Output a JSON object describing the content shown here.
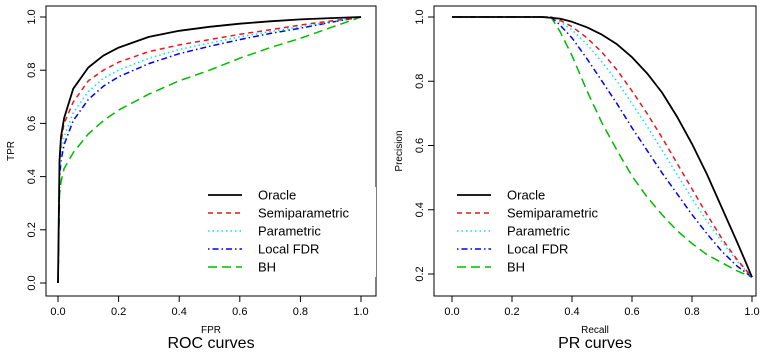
{
  "chart_data": [
    {
      "type": "line",
      "title": "ROC curves",
      "xlabel": "FPR",
      "ylabel": "TPR",
      "xlim": [
        0,
        1
      ],
      "ylim": [
        0,
        1
      ],
      "xticks": [
        "0.0",
        "0.2",
        "0.4",
        "0.6",
        "0.8",
        "1.0"
      ],
      "yticks": [
        "0.0",
        "0.2",
        "0.4",
        "0.6",
        "0.8",
        "1.0"
      ],
      "grid": false,
      "legend_position": "bottom-right",
      "x": [
        0,
        0.005,
        0.01,
        0.02,
        0.05,
        0.1,
        0.15,
        0.2,
        0.3,
        0.4,
        0.5,
        0.6,
        0.7,
        0.8,
        0.9,
        1.0
      ],
      "series": [
        {
          "name": "Oracle",
          "color": "#000000",
          "dash": "solid",
          "values": [
            0,
            0.46,
            0.55,
            0.62,
            0.73,
            0.81,
            0.855,
            0.885,
            0.925,
            0.948,
            0.963,
            0.975,
            0.984,
            0.991,
            0.996,
            1.0
          ]
        },
        {
          "name": "Semiparametric",
          "color": "#e41a1c",
          "dash": "dashed",
          "values": [
            0,
            0.44,
            0.53,
            0.6,
            0.68,
            0.76,
            0.8,
            0.83,
            0.87,
            0.895,
            0.915,
            0.935,
            0.952,
            0.97,
            0.985,
            1.0
          ]
        },
        {
          "name": "Parametric",
          "color": "#00e5ee",
          "dash": "dotted",
          "values": [
            0,
            0.41,
            0.49,
            0.55,
            0.64,
            0.72,
            0.77,
            0.8,
            0.845,
            0.878,
            0.902,
            0.925,
            0.945,
            0.963,
            0.982,
            1.0
          ]
        },
        {
          "name": "Local FDR",
          "color": "#0000ee",
          "dash": "dotdash",
          "values": [
            0,
            0.39,
            0.46,
            0.52,
            0.61,
            0.69,
            0.74,
            0.775,
            0.825,
            0.862,
            0.89,
            0.915,
            0.938,
            0.958,
            0.98,
            1.0
          ]
        },
        {
          "name": "BH",
          "color": "#00bb00",
          "dash": "longdash",
          "values": [
            0,
            0.33,
            0.38,
            0.43,
            0.49,
            0.56,
            0.61,
            0.65,
            0.71,
            0.76,
            0.8,
            0.845,
            0.885,
            0.92,
            0.96,
            1.0
          ]
        }
      ]
    },
    {
      "type": "line",
      "title": "PR curves",
      "xlabel": "Recall",
      "ylabel": "Precision",
      "xlim": [
        0,
        1
      ],
      "ylim": [
        0.18,
        1.0
      ],
      "xticks": [
        "0.0",
        "0.2",
        "0.4",
        "0.6",
        "0.8",
        "1.0"
      ],
      "yticks": [
        "0.2",
        "0.4",
        "0.6",
        "0.8",
        "1.0"
      ],
      "grid": false,
      "legend_position": "bottom-left",
      "series": [
        {
          "name": "Oracle",
          "color": "#000000",
          "dash": "solid",
          "x": [
            0,
            0.3,
            0.36,
            0.4,
            0.45,
            0.5,
            0.55,
            0.6,
            0.65,
            0.7,
            0.75,
            0.8,
            0.85,
            0.9,
            0.95,
            0.98,
            1.0
          ],
          "values": [
            1.0,
            1.0,
            0.995,
            0.985,
            0.968,
            0.945,
            0.915,
            0.875,
            0.825,
            0.765,
            0.69,
            0.605,
            0.51,
            0.405,
            0.3,
            0.235,
            0.19
          ]
        },
        {
          "name": "Semiparametric",
          "color": "#e41a1c",
          "dash": "dashed",
          "x": [
            0,
            0.33,
            0.36,
            0.4,
            0.45,
            0.5,
            0.55,
            0.6,
            0.65,
            0.7,
            0.75,
            0.8,
            0.85,
            0.9,
            0.95,
            1.0
          ],
          "values": [
            1.0,
            1.0,
            0.99,
            0.97,
            0.935,
            0.89,
            0.835,
            0.77,
            0.7,
            0.625,
            0.545,
            0.465,
            0.385,
            0.31,
            0.245,
            0.19
          ]
        },
        {
          "name": "Parametric",
          "color": "#00e5ee",
          "dash": "dotted",
          "x": [
            0,
            0.33,
            0.36,
            0.4,
            0.45,
            0.5,
            0.55,
            0.6,
            0.65,
            0.7,
            0.75,
            0.8,
            0.85,
            0.9,
            0.95,
            1.0
          ],
          "values": [
            1.0,
            1.0,
            0.985,
            0.96,
            0.915,
            0.86,
            0.8,
            0.73,
            0.66,
            0.585,
            0.51,
            0.435,
            0.365,
            0.3,
            0.24,
            0.19
          ]
        },
        {
          "name": "Local FDR",
          "color": "#0000ee",
          "dash": "dotdash",
          "x": [
            0,
            0.33,
            0.36,
            0.4,
            0.45,
            0.5,
            0.55,
            0.6,
            0.65,
            0.7,
            0.75,
            0.8,
            0.85,
            0.9,
            0.95,
            1.0
          ],
          "values": [
            1.0,
            1.0,
            0.975,
            0.935,
            0.87,
            0.8,
            0.73,
            0.655,
            0.585,
            0.515,
            0.45,
            0.385,
            0.325,
            0.27,
            0.225,
            0.19
          ]
        },
        {
          "name": "BH",
          "color": "#00bb00",
          "dash": "longdash",
          "x": [
            0,
            0.33,
            0.36,
            0.4,
            0.45,
            0.5,
            0.55,
            0.6,
            0.65,
            0.7,
            0.75,
            0.8,
            0.85,
            0.9,
            0.95,
            1.0
          ],
          "values": [
            1.0,
            1.0,
            0.955,
            0.88,
            0.77,
            0.67,
            0.585,
            0.505,
            0.44,
            0.385,
            0.335,
            0.295,
            0.26,
            0.235,
            0.21,
            0.19
          ]
        }
      ]
    }
  ]
}
